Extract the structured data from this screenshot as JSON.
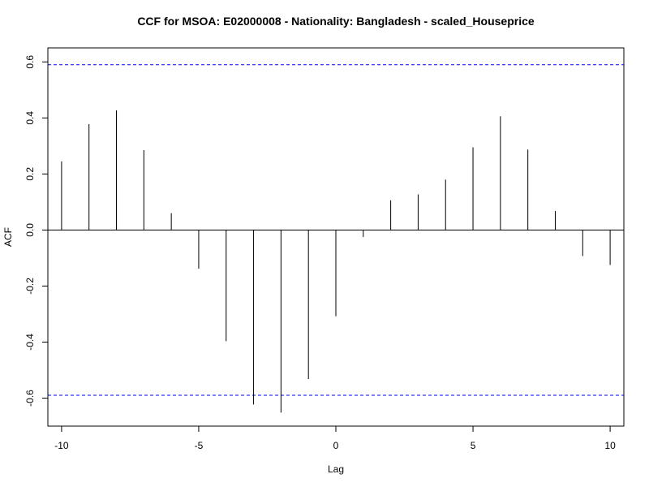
{
  "chart_data": {
    "type": "bar",
    "title": "CCF for MSOA: E02000008 - Nationality: Bangladesh - scaled_Houseprice",
    "xlabel": "Lag",
    "ylabel": "ACF",
    "x": [
      -10,
      -9,
      -8,
      -7,
      -6,
      -5,
      -4,
      -3,
      -2,
      -1,
      0,
      1,
      2,
      3,
      4,
      5,
      6,
      7,
      8,
      9,
      10
    ],
    "values": [
      0.245,
      0.378,
      0.427,
      0.285,
      0.06,
      -0.138,
      -0.397,
      -0.623,
      -0.652,
      -0.532,
      -0.308,
      -0.025,
      0.106,
      0.127,
      0.18,
      0.295,
      0.406,
      0.287,
      0.068,
      -0.093,
      -0.125
    ],
    "xlim": [
      -10.5,
      10.5
    ],
    "ylim": [
      -0.7,
      0.65
    ],
    "xticks": [
      "-10",
      "-5",
      "0",
      "5",
      "10"
    ],
    "yticks": [
      "-0.6",
      "-0.4",
      "-0.2",
      "0.0",
      "0.2",
      "0.4",
      "0.6"
    ],
    "confidence_band": 0.59,
    "colors": {
      "bars": "#000000",
      "band": "#0000ff",
      "zero_line": "#000000"
    },
    "grid": false,
    "legend": "none"
  }
}
